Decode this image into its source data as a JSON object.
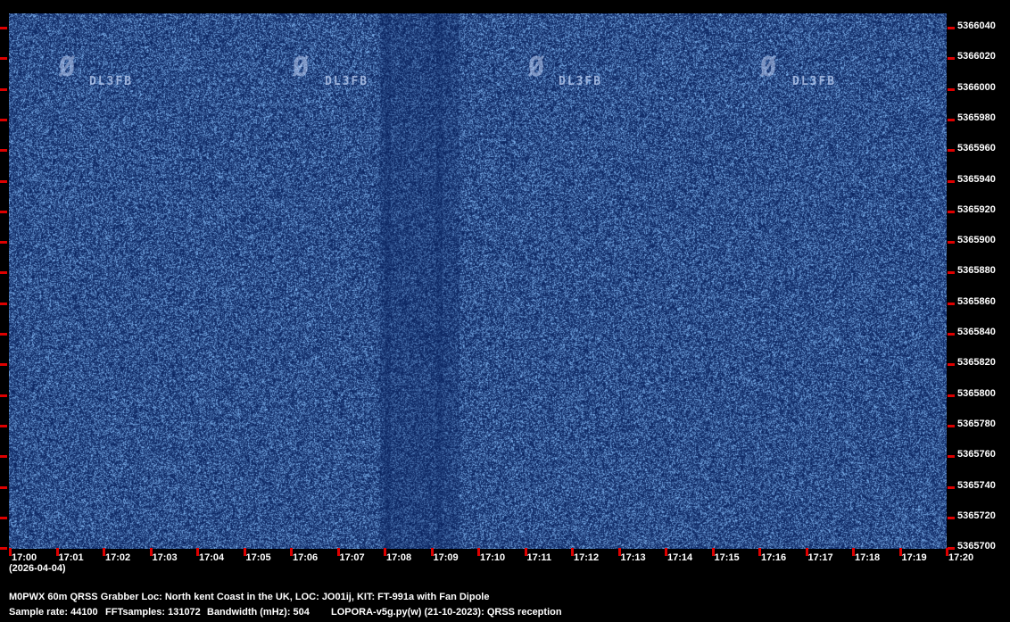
{
  "spectrogram": {
    "background_color": "#0a2a6e",
    "signal_text": "DL3FB",
    "freq_labels": [
      "5366040",
      "5366020",
      "5366000",
      "5365980",
      "5365960",
      "5365940",
      "5365920",
      "5365900",
      "5365880",
      "5365860",
      "5365840",
      "5365820",
      "5365800",
      "5365780",
      "5365760",
      "5365740",
      "5365720",
      "5365700"
    ],
    "time_labels": [
      "17:00",
      "17:01",
      "17:02",
      "17:03",
      "17:04",
      "17:05",
      "17:06",
      "17:07",
      "17:08",
      "17:09",
      "17:10",
      "17:11",
      "17:12",
      "17:13",
      "17:14",
      "17:15",
      "17:16",
      "17:17",
      "17:18",
      "17:19",
      "17:20"
    ],
    "date": "(2026-04-04)"
  },
  "info": {
    "line1": "M0PWX 60m QRSS Grabber Loc: North kent Coast in the UK, LOC: JO01ij, KIT: FT-991a with Fan Dipole",
    "sample_rate": "Sample rate: 44100",
    "fft_samples": "FFTsamples: 131072",
    "bandwidth": "Bandwidth (mHz): 504",
    "software": "LOPORA-v5g.py(w) (21-10-2023): QRSS reception"
  }
}
